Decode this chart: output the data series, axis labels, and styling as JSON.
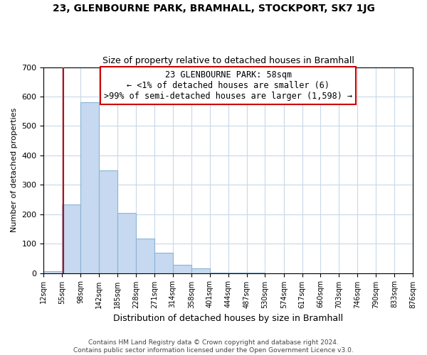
{
  "title": "23, GLENBOURNE PARK, BRAMHALL, STOCKPORT, SK7 1JG",
  "subtitle": "Size of property relative to detached houses in Bramhall",
  "xlabel": "Distribution of detached houses by size in Bramhall",
  "ylabel": "Number of detached properties",
  "bin_edges": [
    12,
    55,
    98,
    142,
    185,
    228,
    271,
    314,
    358,
    401,
    444,
    487,
    530,
    574,
    617,
    660,
    703,
    746,
    790,
    833,
    876
  ],
  "bin_labels": [
    "12sqm",
    "55sqm",
    "98sqm",
    "142sqm",
    "185sqm",
    "228sqm",
    "271sqm",
    "314sqm",
    "358sqm",
    "401sqm",
    "444sqm",
    "487sqm",
    "530sqm",
    "574sqm",
    "617sqm",
    "660sqm",
    "703sqm",
    "746sqm",
    "790sqm",
    "833sqm",
    "876sqm"
  ],
  "bar_heights": [
    6,
    234,
    580,
    350,
    204,
    117,
    70,
    29,
    15,
    2,
    2,
    2,
    0,
    0,
    0,
    0,
    0,
    0,
    0,
    0
  ],
  "bar_color": "#c6d9f0",
  "bar_edge_color": "#8ab4d8",
  "property_line_x": 58,
  "property_line_color": "#cc0000",
  "ylim": [
    0,
    700
  ],
  "yticks": [
    0,
    100,
    200,
    300,
    400,
    500,
    600,
    700
  ],
  "annotation_line1": "23 GLENBOURNE PARK: 58sqm",
  "annotation_line2": "← <1% of detached houses are smaller (6)",
  "annotation_line3": ">99% of semi-detached houses are larger (1,598) →",
  "annotation_box_color": "#ffffff",
  "annotation_box_edge": "#cc0000",
  "footer_line1": "Contains HM Land Registry data © Crown copyright and database right 2024.",
  "footer_line2": "Contains public sector information licensed under the Open Government Licence v3.0.",
  "background_color": "#ffffff",
  "grid_color": "#c8d8e8",
  "title_fontsize": 10,
  "subtitle_fontsize": 9,
  "ylabel_fontsize": 8,
  "xlabel_fontsize": 9,
  "tick_fontsize": 7,
  "annot_fontsize": 8.5,
  "footer_fontsize": 6.5
}
